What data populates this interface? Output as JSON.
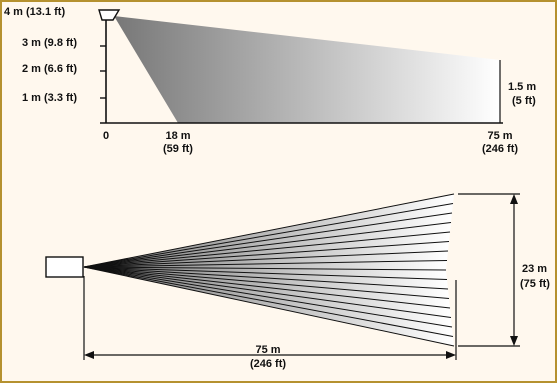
{
  "side_view": {
    "height_labels": [
      "4 m (13.1 ft)",
      "3 m (9.8 ft)",
      "2 m (6.6 ft)",
      "1 m (3.3 ft)"
    ],
    "origin_label": "0",
    "near_distance": {
      "metric": "18 m",
      "imperial": "(59 ft)"
    },
    "far_distance": {
      "metric": "75 m",
      "imperial": "(246 ft)"
    },
    "edge_height": {
      "metric": "1.5 m",
      "imperial": "(5 ft)"
    }
  },
  "top_view": {
    "range": {
      "metric": "75 m",
      "imperial": "(246 ft)"
    },
    "width": {
      "metric": "23 m",
      "imperial": "(75 ft)"
    },
    "zone_count": 16
  },
  "colors": {
    "frame_border": "#b5912f",
    "background": "#fff8ee",
    "coverage_dark": "#777777",
    "coverage_light": "#ffffff",
    "line": "#111111"
  }
}
